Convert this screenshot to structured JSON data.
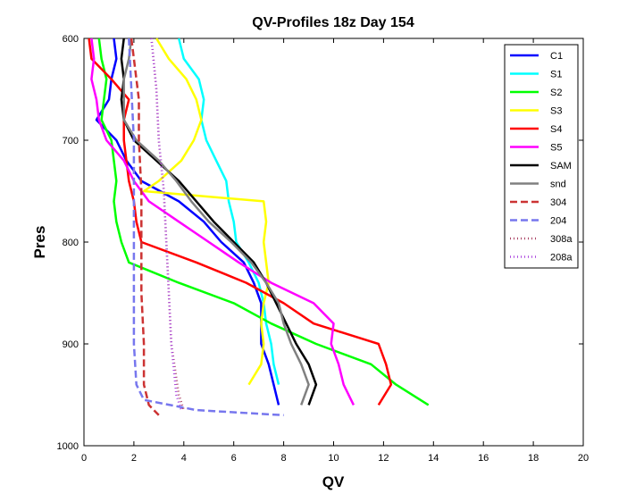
{
  "chart_data": {
    "type": "line",
    "title": "QV-Profiles 18z Day 154",
    "xlabel": "QV",
    "ylabel": "Pres",
    "xlim": [
      0,
      20
    ],
    "ylim": [
      600,
      1000
    ],
    "y_reversed": true,
    "x_ticks": [
      0,
      2,
      4,
      6,
      8,
      10,
      12,
      14,
      16,
      18,
      20
    ],
    "y_ticks": [
      600,
      700,
      800,
      900,
      1000
    ],
    "grid": false,
    "legend_position": "top-right",
    "series": [
      {
        "name": "C1",
        "color": "#0000ff",
        "dash": "solid",
        "y": [
          600,
          620,
          640,
          660,
          680,
          690,
          700,
          720,
          740,
          760,
          780,
          800,
          820,
          840,
          860,
          880,
          900,
          920,
          940,
          960
        ],
        "x": [
          1.2,
          1.3,
          1.1,
          1.0,
          0.5,
          0.9,
          1.3,
          1.7,
          2.3,
          3.8,
          4.8,
          5.5,
          6.4,
          6.8,
          7.1,
          7.1,
          7.1,
          7.4,
          7.6,
          7.8
        ]
      },
      {
        "name": "S1",
        "color": "#00ffff",
        "dash": "solid",
        "y": [
          600,
          620,
          640,
          660,
          680,
          700,
          720,
          740,
          760,
          780,
          800,
          820,
          840,
          860,
          880,
          900,
          920,
          940
        ],
        "x": [
          3.8,
          4.0,
          4.6,
          4.8,
          4.7,
          4.9,
          5.3,
          5.7,
          5.8,
          6.0,
          6.1,
          6.6,
          7.0,
          7.2,
          7.3,
          7.5,
          7.6,
          7.8
        ]
      },
      {
        "name": "S2",
        "color": "#00ff00",
        "dash": "solid",
        "y": [
          600,
          620,
          640,
          660,
          680,
          700,
          720,
          740,
          760,
          780,
          800,
          820,
          840,
          860,
          880,
          900,
          920,
          940,
          960
        ],
        "x": [
          0.6,
          0.7,
          0.9,
          0.8,
          0.7,
          1.1,
          1.2,
          1.3,
          1.2,
          1.3,
          1.5,
          1.8,
          3.8,
          6.0,
          7.5,
          9.3,
          11.5,
          12.5,
          13.8
        ]
      },
      {
        "name": "S3",
        "color": "#ffff00",
        "dash": "solid",
        "y": [
          600,
          620,
          640,
          660,
          680,
          700,
          720,
          740,
          750,
          760,
          780,
          800,
          820,
          840,
          860,
          880,
          900,
          920,
          940
        ],
        "x": [
          2.9,
          3.4,
          4.1,
          4.5,
          4.7,
          4.4,
          3.9,
          3.0,
          2.4,
          7.2,
          7.3,
          7.2,
          7.3,
          7.4,
          7.2,
          7.1,
          7.2,
          7.1,
          6.6
        ]
      },
      {
        "name": "S4",
        "color": "#ff0000",
        "dash": "solid",
        "y": [
          600,
          620,
          640,
          660,
          680,
          700,
          720,
          740,
          760,
          780,
          800,
          820,
          840,
          860,
          880,
          900,
          920,
          940,
          960
        ],
        "x": [
          0.2,
          0.3,
          1.1,
          1.8,
          1.6,
          1.6,
          1.7,
          1.8,
          2.0,
          2.1,
          2.3,
          4.5,
          6.5,
          8.0,
          9.2,
          11.8,
          12.1,
          12.3,
          11.8
        ]
      },
      {
        "name": "S5",
        "color": "#ff00ff",
        "dash": "solid",
        "y": [
          600,
          620,
          640,
          660,
          680,
          700,
          720,
          740,
          760,
          780,
          800,
          820,
          840,
          860,
          880,
          900,
          920,
          940,
          960
        ],
        "x": [
          0.3,
          0.4,
          0.3,
          0.5,
          0.6,
          0.9,
          1.6,
          2.0,
          2.6,
          3.8,
          5.0,
          6.2,
          7.5,
          9.2,
          10.0,
          9.9,
          10.2,
          10.4,
          10.8
        ]
      },
      {
        "name": "SAM",
        "color": "#000000",
        "dash": "solid",
        "y": [
          600,
          620,
          640,
          660,
          680,
          700,
          720,
          740,
          760,
          780,
          800,
          820,
          840,
          860,
          880,
          900,
          920,
          940,
          960
        ],
        "x": [
          1.6,
          1.5,
          1.6,
          1.5,
          1.6,
          2.0,
          2.9,
          3.8,
          4.5,
          5.2,
          6.0,
          6.8,
          7.3,
          7.7,
          8.1,
          8.5,
          9.0,
          9.3,
          9.0
        ]
      },
      {
        "name": "snd",
        "color": "#808080",
        "dash": "solid",
        "y": [
          600,
          620,
          640,
          660,
          680,
          700,
          720,
          740,
          760,
          780,
          800,
          820,
          840,
          860,
          880,
          900,
          920,
          940,
          960
        ],
        "x": [
          1.9,
          1.8,
          1.6,
          1.6,
          1.6,
          2.1,
          3.0,
          3.7,
          4.3,
          5.0,
          5.9,
          6.7,
          7.3,
          7.8,
          8.0,
          8.3,
          8.7,
          9.0,
          8.7
        ]
      },
      {
        "name": "304",
        "color": "#cc3333",
        "dash": "8,4",
        "y": [
          600,
          640,
          660,
          680,
          700,
          750,
          800,
          850,
          900,
          940,
          960,
          970
        ],
        "x": [
          1.9,
          2.1,
          2.2,
          2.2,
          2.2,
          2.3,
          2.3,
          2.3,
          2.4,
          2.4,
          2.6,
          3.0
        ]
      },
      {
        "name": "204",
        "color": "#7777ee",
        "dash": "8,4",
        "y": [
          600,
          650,
          700,
          750,
          800,
          850,
          900,
          940,
          955,
          965,
          970
        ],
        "x": [
          1.8,
          1.9,
          2.0,
          2.0,
          2.0,
          2.0,
          2.0,
          2.1,
          2.4,
          4.5,
          8.0
        ]
      },
      {
        "name": "308a",
        "color": "#aa4466",
        "dash": "1,3",
        "y": [
          600,
          650,
          700,
          750,
          800,
          850,
          900,
          950,
          965
        ],
        "x": [
          2.7,
          2.9,
          3.0,
          3.2,
          3.3,
          3.4,
          3.5,
          3.8,
          4.0
        ]
      },
      {
        "name": "208a",
        "color": "#aa44dd",
        "dash": "1,3",
        "y": [
          600,
          650,
          700,
          750,
          800,
          850,
          900,
          950,
          965
        ],
        "x": [
          2.7,
          2.9,
          3.0,
          3.2,
          3.3,
          3.4,
          3.5,
          3.7,
          3.9
        ]
      }
    ]
  }
}
